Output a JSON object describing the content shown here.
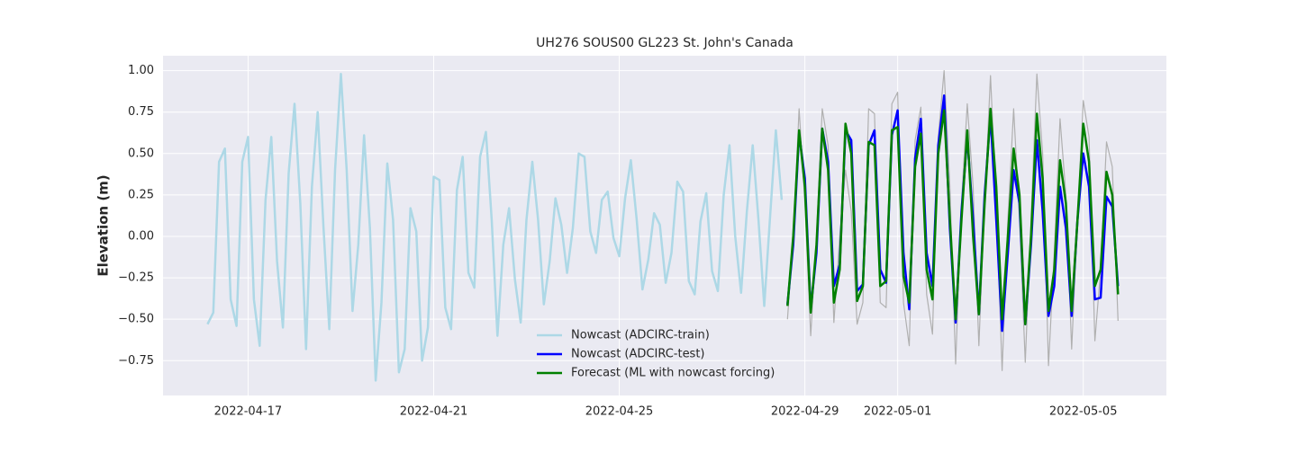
{
  "chart_data": {
    "type": "line",
    "title": "UH276 SOUS00 GL223 St. John's Canada",
    "y_label": "Elevation (m)",
    "x": [
      "2022-04-16 03:00",
      "2022-04-16 06:00",
      "2022-04-16 09:00",
      "2022-04-16 12:00",
      "2022-04-16 15:00",
      "2022-04-16 18:00",
      "2022-04-16 21:00",
      "2022-04-17 00:00",
      "2022-04-17 03:00",
      "2022-04-17 06:00",
      "2022-04-17 09:00",
      "2022-04-17 12:00",
      "2022-04-17 15:00",
      "2022-04-17 18:00",
      "2022-04-17 21:00",
      "2022-04-18 00:00",
      "2022-04-18 03:00",
      "2022-04-18 06:00",
      "2022-04-18 09:00",
      "2022-04-18 12:00",
      "2022-04-18 15:00",
      "2022-04-18 18:00",
      "2022-04-18 21:00",
      "2022-04-19 00:00",
      "2022-04-19 03:00",
      "2022-04-19 06:00",
      "2022-04-19 09:00",
      "2022-04-19 12:00",
      "2022-04-19 15:00",
      "2022-04-19 18:00",
      "2022-04-19 21:00",
      "2022-04-20 00:00",
      "2022-04-20 03:00",
      "2022-04-20 06:00",
      "2022-04-20 09:00",
      "2022-04-20 12:00",
      "2022-04-20 15:00",
      "2022-04-20 18:00",
      "2022-04-20 21:00",
      "2022-04-21 00:00",
      "2022-04-21 03:00",
      "2022-04-21 06:00",
      "2022-04-21 09:00",
      "2022-04-21 12:00",
      "2022-04-21 15:00",
      "2022-04-21 18:00",
      "2022-04-21 21:00",
      "2022-04-22 00:00",
      "2022-04-22 03:00",
      "2022-04-22 06:00",
      "2022-04-22 09:00",
      "2022-04-22 12:00",
      "2022-04-22 15:00",
      "2022-04-22 18:00",
      "2022-04-22 21:00",
      "2022-04-23 00:00",
      "2022-04-23 03:00",
      "2022-04-23 06:00",
      "2022-04-23 09:00",
      "2022-04-23 12:00",
      "2022-04-23 15:00",
      "2022-04-23 18:00",
      "2022-04-23 21:00",
      "2022-04-24 00:00",
      "2022-04-24 03:00",
      "2022-04-24 06:00",
      "2022-04-24 09:00",
      "2022-04-24 12:00",
      "2022-04-24 15:00",
      "2022-04-24 18:00",
      "2022-04-24 21:00",
      "2022-04-25 00:00",
      "2022-04-25 03:00",
      "2022-04-25 06:00",
      "2022-04-25 09:00",
      "2022-04-25 12:00",
      "2022-04-25 15:00",
      "2022-04-25 18:00",
      "2022-04-25 21:00",
      "2022-04-26 00:00",
      "2022-04-26 03:00",
      "2022-04-26 06:00",
      "2022-04-26 09:00",
      "2022-04-26 12:00",
      "2022-04-26 15:00",
      "2022-04-26 18:00",
      "2022-04-26 21:00",
      "2022-04-27 00:00",
      "2022-04-27 03:00",
      "2022-04-27 06:00",
      "2022-04-27 09:00",
      "2022-04-27 12:00",
      "2022-04-27 15:00",
      "2022-04-27 18:00",
      "2022-04-27 21:00",
      "2022-04-28 00:00",
      "2022-04-28 03:00",
      "2022-04-28 06:00",
      "2022-04-28 09:00",
      "2022-04-28 12:00",
      "2022-04-28 15:00",
      "2022-04-28 18:00",
      "2022-04-28 21:00",
      "2022-04-29 00:00",
      "2022-04-29 03:00",
      "2022-04-29 06:00",
      "2022-04-29 09:00",
      "2022-04-29 12:00",
      "2022-04-29 15:00",
      "2022-04-29 18:00",
      "2022-04-29 21:00",
      "2022-04-30 00:00",
      "2022-04-30 03:00",
      "2022-04-30 06:00",
      "2022-04-30 09:00",
      "2022-04-30 12:00",
      "2022-04-30 15:00",
      "2022-04-30 18:00",
      "2022-04-30 21:00",
      "2022-05-01 00:00",
      "2022-05-01 03:00",
      "2022-05-01 06:00",
      "2022-05-01 09:00",
      "2022-05-01 12:00",
      "2022-05-01 15:00",
      "2022-05-01 18:00",
      "2022-05-01 21:00",
      "2022-05-02 00:00",
      "2022-05-02 03:00",
      "2022-05-02 06:00",
      "2022-05-02 09:00",
      "2022-05-02 12:00",
      "2022-05-02 15:00",
      "2022-05-02 18:00",
      "2022-05-02 21:00",
      "2022-05-03 00:00",
      "2022-05-03 03:00",
      "2022-05-03 06:00",
      "2022-05-03 09:00",
      "2022-05-03 12:00",
      "2022-05-03 15:00",
      "2022-05-03 18:00",
      "2022-05-03 21:00",
      "2022-05-04 00:00",
      "2022-05-04 03:00",
      "2022-05-04 06:00",
      "2022-05-04 09:00",
      "2022-05-04 12:00",
      "2022-05-04 15:00",
      "2022-05-04 18:00",
      "2022-05-04 21:00",
      "2022-05-05 00:00",
      "2022-05-05 03:00",
      "2022-05-05 06:00",
      "2022-05-05 09:00",
      "2022-05-05 12:00",
      "2022-05-05 15:00",
      "2022-05-05 18:00"
    ],
    "series": [
      {
        "name": "Nowcast (ADCIRC-train)",
        "color": "#add8e6",
        "width": 2.5,
        "values": [
          -0.53,
          -0.46,
          0.45,
          0.53,
          -0.38,
          -0.54,
          0.45,
          0.6,
          -0.38,
          -0.66,
          0.22,
          0.6,
          -0.15,
          -0.55,
          0.38,
          0.8,
          0.2,
          -0.68,
          0.3,
          0.75,
          0.05,
          -0.56,
          0.4,
          0.98,
          0.4,
          -0.45,
          -0.05,
          0.61,
          0.05,
          -0.87,
          -0.4,
          0.44,
          0.1,
          -0.82,
          -0.68,
          0.17,
          0.03,
          -0.75,
          -0.55,
          0.36,
          0.34,
          -0.43,
          -0.56,
          0.28,
          0.48,
          -0.22,
          -0.31,
          0.48,
          0.63,
          0.1,
          -0.6,
          -0.05,
          0.17,
          -0.26,
          -0.52,
          0.1,
          0.45,
          0.1,
          -0.41,
          -0.15,
          0.23,
          0.07,
          -0.22,
          0.05,
          0.5,
          0.48,
          0.03,
          -0.1,
          0.22,
          0.27,
          -0.01,
          -0.12,
          0.23,
          0.46,
          0.1,
          -0.32,
          -0.14,
          0.14,
          0.07,
          -0.28,
          -0.1,
          0.33,
          0.27,
          -0.27,
          -0.35,
          0.09,
          0.26,
          -0.21,
          -0.33,
          0.25,
          0.55,
          0.0,
          -0.34,
          0.15,
          0.55,
          0.1,
          -0.42,
          0.12,
          0.64,
          0.22,
          null,
          null,
          null,
          null,
          null,
          null,
          null,
          null,
          null,
          null,
          null,
          null,
          null,
          null,
          null,
          null,
          null,
          null,
          null,
          null,
          null,
          null,
          null,
          null,
          null,
          null,
          null,
          null,
          null,
          null,
          null,
          null,
          null,
          null,
          null,
          null,
          null,
          null,
          null,
          null,
          null,
          null,
          null,
          null,
          null,
          null,
          null,
          null,
          null,
          null,
          null,
          null,
          null,
          null,
          null,
          null,
          null,
          null
        ]
      },
      {
        "color": "#b0b0b0",
        "width": 1.2,
        "values": [
          null,
          null,
          null,
          null,
          null,
          null,
          null,
          null,
          null,
          null,
          null,
          null,
          null,
          null,
          null,
          null,
          null,
          null,
          null,
          null,
          null,
          null,
          null,
          null,
          null,
          null,
          null,
          null,
          null,
          null,
          null,
          null,
          null,
          null,
          null,
          null,
          null,
          null,
          null,
          null,
          null,
          null,
          null,
          null,
          null,
          null,
          null,
          null,
          null,
          null,
          null,
          null,
          null,
          null,
          null,
          null,
          null,
          null,
          null,
          null,
          null,
          null,
          null,
          null,
          null,
          null,
          null,
          null,
          null,
          null,
          null,
          null,
          null,
          null,
          null,
          null,
          null,
          null,
          null,
          null,
          null,
          null,
          null,
          null,
          null,
          null,
          null,
          null,
          null,
          null,
          null,
          null,
          null,
          null,
          null,
          null,
          null,
          null,
          null,
          null,
          -0.5,
          0.0,
          0.77,
          0.2,
          -0.6,
          0.0,
          0.77,
          0.55,
          -0.52,
          0.0,
          0.4,
          0.15,
          -0.53,
          -0.4,
          0.77,
          0.74,
          -0.4,
          -0.43,
          0.8,
          0.87,
          -0.4,
          -0.66,
          0.58,
          0.78,
          -0.35,
          -0.59,
          0.6,
          1.0,
          0.3,
          -0.77,
          0.2,
          0.8,
          0.3,
          -0.66,
          0.2,
          0.97,
          0.2,
          -0.81,
          0.1,
          0.77,
          0.1,
          -0.76,
          0.1,
          0.98,
          0.5,
          -0.78,
          -0.1,
          0.71,
          0.25,
          -0.68,
          0.1,
          0.82,
          0.6,
          -0.63,
          -0.2,
          0.57,
          0.42,
          -0.51
        ]
      },
      {
        "name": "Nowcast (ADCIRC-test)",
        "color": "#0000ff",
        "width": 2.5,
        "values": [
          null,
          null,
          null,
          null,
          null,
          null,
          null,
          null,
          null,
          null,
          null,
          null,
          null,
          null,
          null,
          null,
          null,
          null,
          null,
          null,
          null,
          null,
          null,
          null,
          null,
          null,
          null,
          null,
          null,
          null,
          null,
          null,
          null,
          null,
          null,
          null,
          null,
          null,
          null,
          null,
          null,
          null,
          null,
          null,
          null,
          null,
          null,
          null,
          null,
          null,
          null,
          null,
          null,
          null,
          null,
          null,
          null,
          null,
          null,
          null,
          null,
          null,
          null,
          null,
          null,
          null,
          null,
          null,
          null,
          null,
          null,
          null,
          null,
          null,
          null,
          null,
          null,
          null,
          null,
          null,
          null,
          null,
          null,
          null,
          null,
          null,
          null,
          null,
          null,
          null,
          null,
          null,
          null,
          null,
          null,
          null,
          null,
          null,
          null,
          null,
          -0.41,
          -0.05,
          0.62,
          0.35,
          -0.44,
          -0.1,
          0.65,
          0.45,
          -0.3,
          -0.17,
          0.64,
          0.58,
          -0.33,
          -0.29,
          0.55,
          0.64,
          -0.2,
          -0.28,
          0.61,
          0.76,
          -0.1,
          -0.44,
          0.47,
          0.71,
          -0.1,
          -0.3,
          0.55,
          0.85,
          0.05,
          -0.52,
          0.15,
          0.6,
          0.1,
          -0.47,
          0.25,
          0.73,
          0.1,
          -0.57,
          -0.1,
          0.4,
          0.2,
          -0.53,
          -0.05,
          0.58,
          0.15,
          -0.48,
          -0.3,
          0.3,
          0.05,
          -0.48,
          0.1,
          0.5,
          0.3,
          -0.38,
          -0.37,
          0.24,
          0.18,
          -0.3
        ]
      },
      {
        "name": "Forecast (ML with nowcast forcing)",
        "color": "#008000",
        "width": 2.5,
        "values": [
          null,
          null,
          null,
          null,
          null,
          null,
          null,
          null,
          null,
          null,
          null,
          null,
          null,
          null,
          null,
          null,
          null,
          null,
          null,
          null,
          null,
          null,
          null,
          null,
          null,
          null,
          null,
          null,
          null,
          null,
          null,
          null,
          null,
          null,
          null,
          null,
          null,
          null,
          null,
          null,
          null,
          null,
          null,
          null,
          null,
          null,
          null,
          null,
          null,
          null,
          null,
          null,
          null,
          null,
          null,
          null,
          null,
          null,
          null,
          null,
          null,
          null,
          null,
          null,
          null,
          null,
          null,
          null,
          null,
          null,
          null,
          null,
          null,
          null,
          null,
          null,
          null,
          null,
          null,
          null,
          null,
          null,
          null,
          null,
          null,
          null,
          null,
          null,
          null,
          null,
          null,
          null,
          null,
          null,
          null,
          null,
          null,
          null,
          null,
          null,
          -0.42,
          0.0,
          0.64,
          0.3,
          -0.46,
          -0.05,
          0.65,
          0.4,
          -0.4,
          -0.2,
          0.68,
          0.5,
          -0.39,
          -0.3,
          0.57,
          0.55,
          -0.3,
          -0.27,
          0.64,
          0.66,
          -0.24,
          -0.4,
          0.42,
          0.62,
          -0.2,
          -0.38,
          0.5,
          0.76,
          0.1,
          -0.5,
          0.1,
          0.64,
          0.0,
          -0.47,
          0.2,
          0.77,
          0.3,
          -0.5,
          0.0,
          0.53,
          0.25,
          -0.53,
          0.0,
          0.74,
          0.35,
          -0.45,
          -0.2,
          0.46,
          0.2,
          -0.45,
          0.1,
          0.68,
          0.45,
          -0.3,
          -0.2,
          0.39,
          0.25,
          -0.35
        ]
      }
    ],
    "xlim": [
      "2022-04-15 04:00",
      "2022-05-06 19:00"
    ],
    "xticks": [
      "2022-04-17",
      "2022-04-21",
      "2022-04-25",
      "2022-04-29",
      "2022-05-01",
      "2022-05-05"
    ],
    "ylim": [
      -0.96,
      1.09
    ],
    "yticks": [
      {
        "value": -0.75,
        "label": "−0.75"
      },
      {
        "value": -0.5,
        "label": "−0.50"
      },
      {
        "value": -0.25,
        "label": "−0.25"
      },
      {
        "value": 0,
        "label": "0.00"
      },
      {
        "value": 0.25,
        "label": "0.25"
      },
      {
        "value": 0.5,
        "label": "0.50"
      },
      {
        "value": 0.75,
        "label": "0.75"
      },
      {
        "value": 1,
        "label": "1.00"
      }
    ],
    "grid": true,
    "legend": "lower center"
  }
}
